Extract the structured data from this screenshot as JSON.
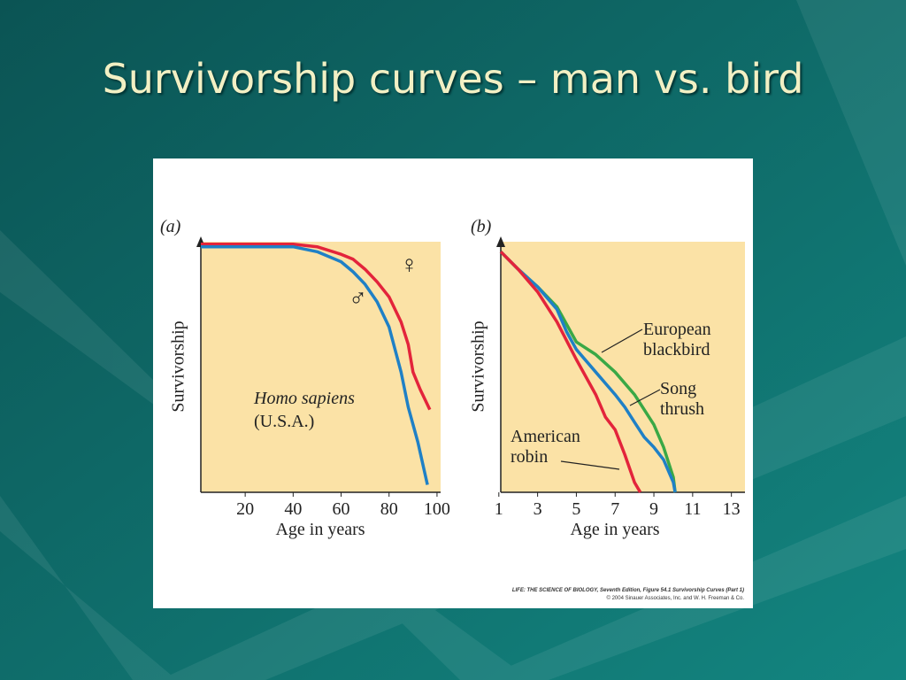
{
  "title": "Survivorship curves – man vs. bird",
  "chart_data": [
    {
      "type": "line",
      "panel_label": "(a)",
      "y_label": "Survivorship",
      "x_label": "Age in years",
      "annotations": [
        "Homo sapiens",
        "(U.S.A.)"
      ],
      "xlim": [
        1.5,
        101.5
      ],
      "xticks": [
        20,
        40,
        60,
        80,
        100
      ],
      "ylim": [
        0,
        1
      ],
      "series": [
        {
          "name": "♀",
          "color": "#e3243b",
          "x": [
            1.5,
            20,
            40,
            50,
            60,
            65,
            70,
            75,
            80,
            85,
            88,
            90,
            93,
            97
          ],
          "values": [
            0.99,
            0.99,
            0.99,
            0.98,
            0.95,
            0.93,
            0.89,
            0.84,
            0.78,
            0.68,
            0.59,
            0.48,
            0.41,
            0.33
          ]
        },
        {
          "name": "♂",
          "color": "#1f80c6",
          "x": [
            1.5,
            20,
            40,
            50,
            60,
            65,
            70,
            75,
            80,
            85,
            88,
            92,
            96
          ],
          "values": [
            0.98,
            0.98,
            0.98,
            0.96,
            0.92,
            0.88,
            0.83,
            0.76,
            0.66,
            0.48,
            0.34,
            0.2,
            0.03
          ]
        }
      ]
    },
    {
      "type": "line",
      "panel_label": "(b)",
      "y_label": "Survivorship",
      "x_label": "Age in years",
      "xlim": [
        1.1,
        13.7
      ],
      "xticks": [
        1,
        3,
        5,
        7,
        9,
        11,
        13
      ],
      "ylim": [
        0,
        1
      ],
      "series": [
        {
          "name": "European blackbird",
          "color": "#3aa846",
          "x": [
            1.1,
            2,
            3,
            4,
            5,
            6,
            7,
            8,
            9,
            9.5,
            10,
            10.1
          ],
          "values": [
            0.96,
            0.89,
            0.82,
            0.74,
            0.6,
            0.55,
            0.48,
            0.39,
            0.27,
            0.18,
            0.06,
            0
          ]
        },
        {
          "name": "Song thrush",
          "color": "#1f80c6",
          "x": [
            1.1,
            2,
            3,
            4,
            4.5,
            5,
            6,
            7,
            7.5,
            8,
            8.5,
            9,
            9.5,
            10,
            10.1
          ],
          "values": [
            0.96,
            0.89,
            0.82,
            0.73,
            0.64,
            0.57,
            0.48,
            0.39,
            0.34,
            0.28,
            0.22,
            0.18,
            0.13,
            0.04,
            0
          ]
        },
        {
          "name": "American robin",
          "color": "#e3243b",
          "x": [
            1.1,
            2,
            3,
            4,
            5,
            6,
            6.5,
            7,
            7.5,
            8,
            8.3
          ],
          "values": [
            0.96,
            0.89,
            0.8,
            0.68,
            0.53,
            0.39,
            0.3,
            0.25,
            0.15,
            0.04,
            0
          ]
        }
      ]
    }
  ],
  "credit": [
    "LIFE: THE SCIENCE OF BIOLOGY, Seventh Edition, Figure 54.1 Survivorship Curves (Part 1)",
    "© 2004 Sinauer Associates, Inc. and W. H. Freeman & Co."
  ]
}
